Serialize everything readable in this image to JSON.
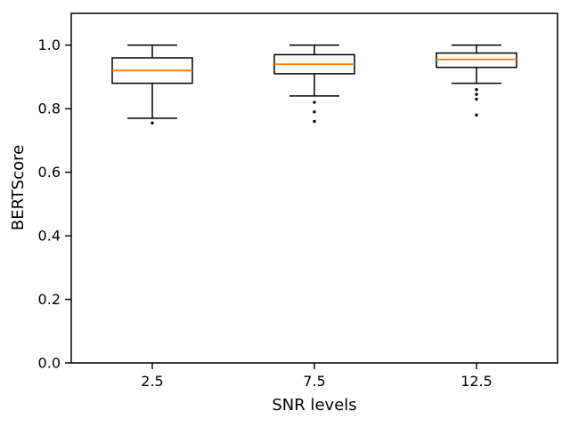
{
  "figure": {
    "background": "#ffffff"
  },
  "chart_data": {
    "type": "box",
    "title": "",
    "xlabel": "SNR levels",
    "ylabel": "BERTScore",
    "categories": [
      "2.5",
      "7.5",
      "12.5"
    ],
    "ylim": [
      0.0,
      1.1
    ],
    "yticks": [
      0.0,
      0.2,
      0.4,
      0.6,
      0.8,
      1.0
    ],
    "ytick_labels": [
      "0.0",
      "0.2",
      "0.4",
      "0.6",
      "0.8",
      "1.0"
    ],
    "grid": false,
    "legend": null,
    "colors": {
      "box_edge": "#000000",
      "median": "#ff7f0e",
      "flier": "#000000",
      "background": "#ffffff"
    },
    "boxes": [
      {
        "category": "2.5",
        "whisker_low": 0.77,
        "q1": 0.88,
        "median": 0.92,
        "q3": 0.96,
        "whisker_high": 1.0,
        "outliers": [
          0.755
        ]
      },
      {
        "category": "7.5",
        "whisker_low": 0.84,
        "q1": 0.91,
        "median": 0.94,
        "q3": 0.97,
        "whisker_high": 1.0,
        "outliers": [
          0.82,
          0.79,
          0.76
        ]
      },
      {
        "category": "12.5",
        "whisker_low": 0.88,
        "q1": 0.93,
        "median": 0.955,
        "q3": 0.975,
        "whisker_high": 1.0,
        "outliers": [
          0.86,
          0.845,
          0.83,
          0.78
        ]
      }
    ]
  }
}
